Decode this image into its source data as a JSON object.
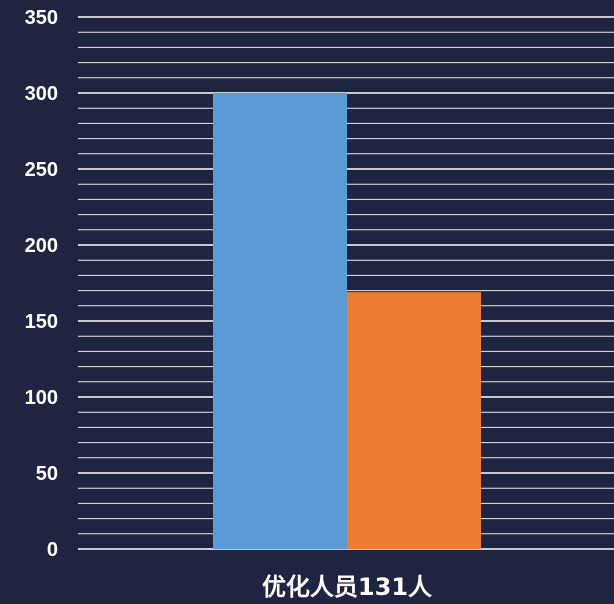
{
  "colors": {
    "background": "#1f2541",
    "gridline": "#ffffff",
    "axis_text": "#ffffff"
  },
  "chart_data": {
    "type": "bar",
    "title": "",
    "xlabel": "",
    "ylabel": "",
    "categories": [
      "优化人员131人"
    ],
    "series": [
      {
        "values": [
          300
        ],
        "color": "#5b9bd5"
      },
      {
        "values": [
          169
        ],
        "color": "#ed7d31"
      }
    ],
    "ylim": [
      0,
      350
    ],
    "y_ticks": [
      0,
      50,
      100,
      150,
      200,
      250,
      300,
      350
    ],
    "minor_gridlines_per_major": 5,
    "grid": true,
    "legend": "none"
  }
}
